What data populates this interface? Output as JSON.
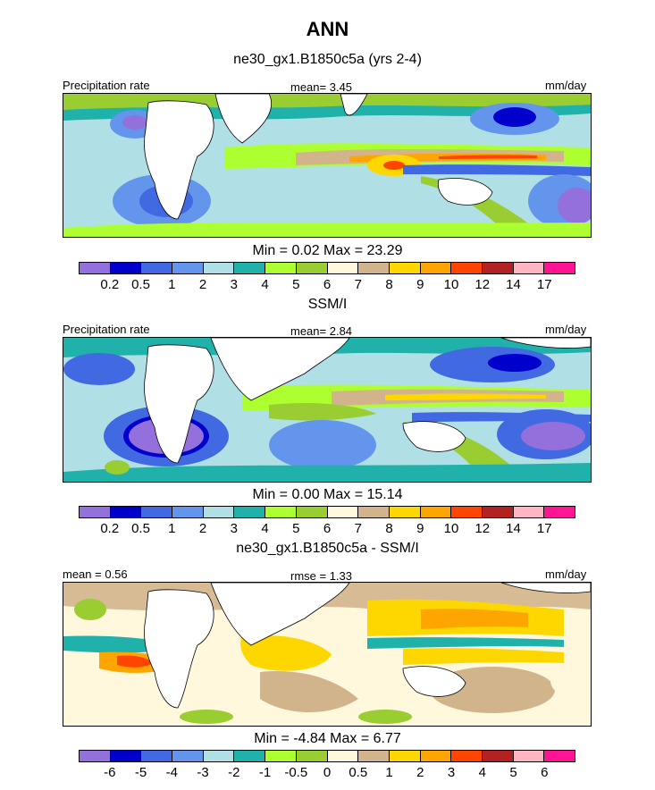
{
  "title": "ANN",
  "colors": [
    "#9370DB",
    "#0000CD",
    "#4169E1",
    "#6495ED",
    "#B0E0E6",
    "#20B2AA",
    "#ADFF2F",
    "#9ACD32",
    "#FFF8DC",
    "#D2B48C",
    "#FFD700",
    "#FFA500",
    "#FF4500",
    "#B22222",
    "#FFB6C1",
    "#FF1493"
  ],
  "panels": [
    {
      "title": "ne30_gx1.B1850c5a (yrs 2-4)",
      "left_label": "Precipitation rate",
      "center_label": "mean=  3.45",
      "right_label": "mm/day",
      "minmax": "Min =   0.02 Max =  23.29",
      "ticks": [
        "0.2",
        "0.5",
        "1",
        "2",
        "3",
        "4",
        "5",
        "6",
        "7",
        "8",
        "9",
        "10",
        "12",
        "14",
        "17"
      ]
    },
    {
      "title": "SSM/I",
      "left_label": "Precipitation rate",
      "center_label": "mean=  2.84",
      "right_label": "mm/day",
      "minmax": "Min =   0.00 Max =  15.14",
      "ticks": [
        "0.2",
        "0.5",
        "1",
        "2",
        "3",
        "4",
        "5",
        "6",
        "7",
        "8",
        "9",
        "10",
        "12",
        "14",
        "17"
      ]
    },
    {
      "title": "ne30_gx1.B1850c5a - SSM/I",
      "left_label": "mean =  0.56",
      "center_label": "rmse =  1.33",
      "right_label": "mm/day",
      "minmax": "Min =  -4.84 Max =   6.77",
      "ticks": [
        "-6",
        "-5",
        "-4",
        "-3",
        "-2",
        "-1",
        "-0.5",
        "0",
        "0.5",
        "1",
        "2",
        "3",
        "4",
        "5",
        "6"
      ]
    }
  ]
}
